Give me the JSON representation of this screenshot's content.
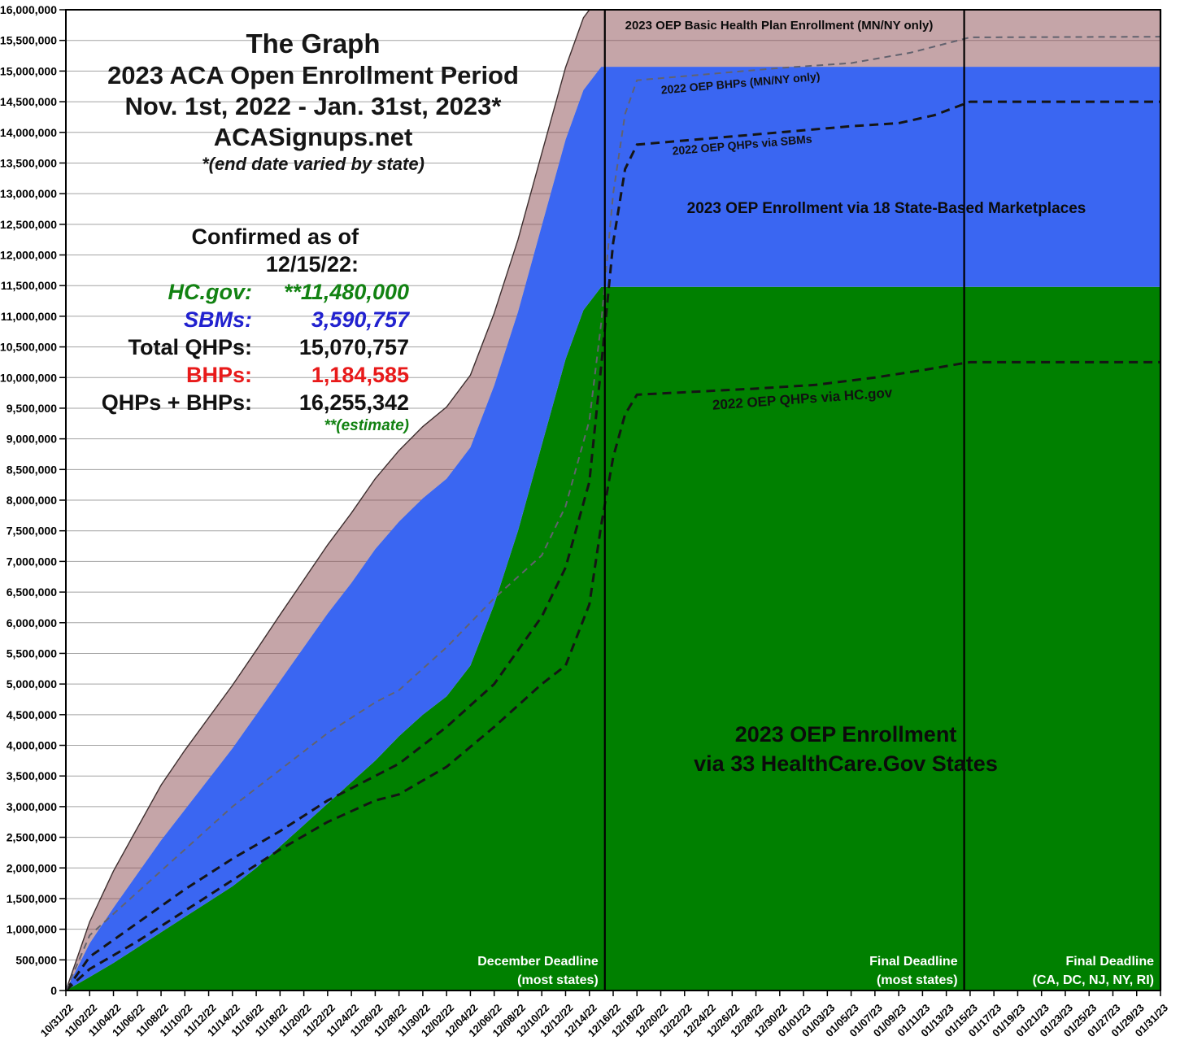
{
  "title_block": {
    "line1": "The Graph",
    "line2": "2023 ACA Open Enrollment Period",
    "line3": "Nov. 1st, 2022 - Jan. 31st, 2023*",
    "line4": "ACASignups.net",
    "line5": "*(end date varied by state)"
  },
  "stats": {
    "heading": "Confirmed as of 12/15/22:",
    "rows": [
      {
        "label": "HC.gov:",
        "value": "**11,480,000",
        "color": "#128212"
      },
      {
        "label": "SBMs:",
        "value": "3,590,757",
        "color": "#2121CF"
      },
      {
        "label": "Total QHPs:",
        "value": "15,070,757",
        "color": "#111111"
      },
      {
        "label": "BHPs:",
        "value": "1,184,585",
        "color": "#E81A1A"
      },
      {
        "label": "QHPs + BHPs:",
        "value": "16,255,342",
        "color": "#111111"
      }
    ],
    "note": "**(estimate)"
  },
  "colors": {
    "hcgov_green": "#008000",
    "sbm_blue": "#3A66F2",
    "bhp_pink": "rgba(139,75,81,0.5)",
    "stat_green": "#128212",
    "stat_blue": "#2121CF",
    "stat_red": "#E81A1A",
    "grid_gray": "#A3A3A3",
    "dashed_2022_black": "#151515",
    "dashed_2022_gray": "#62626E",
    "deadline_text": "#FFFFFF"
  },
  "chart_data": {
    "type": "area",
    "title": "The Graph — 2023 ACA Open Enrollment Period",
    "unit": "millions of enrollees",
    "legend_position": "labels-on-areas",
    "grid": true,
    "x_axis": {
      "days_span": 92,
      "start_date": "10/31/22",
      "end_date": "01/31/23",
      "tick_labels": [
        "10/31/22",
        "11/02/22",
        "11/04/22",
        "11/06/22",
        "11/08/22",
        "11/10/22",
        "11/12/22",
        "11/14/22",
        "11/16/22",
        "11/18/22",
        "11/20/22",
        "11/22/22",
        "11/24/22",
        "11/26/22",
        "11/28/22",
        "11/30/22",
        "12/02/22",
        "12/04/22",
        "12/06/22",
        "12/08/22",
        "12/10/22",
        "12/12/22",
        "12/14/22",
        "12/16/22",
        "12/18/22",
        "12/20/22",
        "12/22/22",
        "12/24/22",
        "12/26/22",
        "12/28/22",
        "12/30/22",
        "01/01/23",
        "01/03/23",
        "01/05/23",
        "01/07/23",
        "01/09/23",
        "01/11/23",
        "01/13/23",
        "01/15/23",
        "01/17/23",
        "01/19/23",
        "01/21/23",
        "01/23/23",
        "01/25/23",
        "01/27/23",
        "01/29/23",
        "01/31/23"
      ]
    },
    "y_axis": {
      "min": 0,
      "max_millions": 16,
      "tick_interval": 500000,
      "tick_labels": [
        "16,000,000",
        "15,500,000",
        "15,000,000",
        "14,500,000",
        "14,000,000",
        "13,500,000",
        "13,000,000",
        "12,500,000",
        "12,000,000",
        "11,500,000",
        "11,000,000",
        "10,500,000",
        "10,000,000",
        "9,500,000",
        "9,000,000",
        "8,500,000",
        "8,000,000",
        "7,500,000",
        "7,000,000",
        "6,500,000",
        "6,000,000",
        "5,500,000",
        "5,000,000",
        "4,500,000",
        "4,000,000",
        "3,500,000",
        "3,000,000",
        "2,500,000",
        "2,000,000",
        "1,500,000",
        "1,000,000",
        "500,000",
        "0"
      ]
    },
    "areas_2023": [
      {
        "id": "hcgov",
        "label_lines": [
          "2023 OEP Enrollment",
          "via 33 HealthCare.Gov States"
        ],
        "color": "#008000",
        "final_value_millions": 11.48,
        "days": [
          0,
          2,
          4,
          6,
          8,
          10,
          12,
          14,
          16,
          18,
          20,
          22,
          24,
          26,
          28,
          30,
          32,
          34,
          36,
          38,
          40,
          42,
          43.5,
          45,
          92
        ],
        "values": [
          0,
          0.22,
          0.45,
          0.7,
          0.95,
          1.2,
          1.45,
          1.7,
          2.0,
          2.35,
          2.7,
          3.05,
          3.4,
          3.75,
          4.15,
          4.5,
          4.8,
          5.3,
          6.3,
          7.5,
          8.9,
          10.3,
          11.1,
          11.48,
          11.48
        ]
      },
      {
        "id": "sbm",
        "label": "2023 OEP Enrollment via 18 State-Based Marketplaces",
        "color": "#3A66F2",
        "final_value_millions": 15.07,
        "days": [
          0,
          2,
          4,
          6,
          8,
          10,
          12,
          14,
          16,
          18,
          20,
          22,
          24,
          26,
          28,
          30,
          32,
          34,
          36,
          38,
          40,
          42,
          43.5,
          45,
          92
        ],
        "values": [
          0,
          0.77,
          1.35,
          1.9,
          2.45,
          2.95,
          3.45,
          3.95,
          4.5,
          5.05,
          5.6,
          6.15,
          6.65,
          7.2,
          7.65,
          8.03,
          8.35,
          8.86,
          9.87,
          11.07,
          12.48,
          13.88,
          14.69,
          15.07,
          15.07
        ]
      },
      {
        "id": "bhp",
        "label": "2023 OEP Basic Health Plan Enrollment (MN/NY only)",
        "color": "rgba(139,75,81,0.5)",
        "edge_color": "#3D2E2E",
        "final_value_millions": 16.255,
        "days": [
          0,
          2,
          4,
          6,
          8,
          10,
          12,
          14,
          16,
          18,
          20,
          22,
          24,
          26,
          28,
          30,
          32,
          34,
          36,
          38,
          40,
          42,
          43.5,
          45,
          92
        ],
        "values": [
          0,
          1.12,
          1.95,
          2.65,
          3.35,
          3.92,
          4.45,
          4.98,
          5.55,
          6.13,
          6.7,
          7.27,
          7.79,
          8.35,
          8.81,
          9.2,
          9.52,
          10.04,
          11.05,
          12.25,
          13.66,
          15.06,
          15.87,
          16.255,
          16.255
        ]
      }
    ],
    "lines_2022": [
      {
        "id": "hc22",
        "label": "2022 OEP QHPs via HC.gov",
        "stroke": "#151515",
        "width": 3,
        "dash": "11 7",
        "final_value_millions": 10.25,
        "days": [
          0,
          2,
          6,
          10,
          14,
          18,
          22,
          26,
          28,
          32,
          36,
          40,
          42,
          44,
          45,
          46,
          47,
          48,
          52,
          58,
          63,
          68,
          72,
          75,
          76,
          92
        ],
        "values": [
          0,
          0.35,
          0.8,
          1.3,
          1.8,
          2.3,
          2.75,
          3.1,
          3.2,
          3.65,
          4.3,
          5.0,
          5.3,
          6.3,
          7.6,
          8.7,
          9.4,
          9.72,
          9.76,
          9.82,
          9.88,
          10.0,
          10.12,
          10.22,
          10.25,
          10.25
        ]
      },
      {
        "id": "sbm22",
        "label": "2022 OEP QHPs via SBMs",
        "stroke": "#151515",
        "width": 3,
        "dash": "11 7",
        "final_value_millions": 14.5,
        "days": [
          0,
          2,
          6,
          10,
          14,
          18,
          22,
          26,
          28,
          32,
          36,
          40,
          42,
          44,
          45,
          46,
          47,
          48,
          54,
          60,
          66,
          70,
          73,
          76,
          92
        ],
        "values": [
          0,
          0.55,
          1.1,
          1.65,
          2.15,
          2.6,
          3.1,
          3.5,
          3.7,
          4.3,
          5.0,
          6.1,
          6.9,
          8.3,
          10.2,
          12.2,
          13.4,
          13.8,
          13.9,
          14.0,
          14.1,
          14.15,
          14.28,
          14.5,
          14.5
        ]
      },
      {
        "id": "bhp22",
        "label": "2022 OEP BHPs (MN/NY only)",
        "stroke": "#62626E",
        "width": 2,
        "dash": "8 6",
        "final_value_millions": 15.56,
        "days": [
          0,
          2,
          6,
          10,
          14,
          18,
          22,
          26,
          28,
          32,
          36,
          40,
          42,
          44,
          45,
          46,
          47,
          48,
          54,
          60,
          66,
          71,
          76,
          92
        ],
        "values": [
          0,
          0.9,
          1.6,
          2.3,
          3.0,
          3.6,
          4.2,
          4.7,
          4.9,
          5.6,
          6.4,
          7.1,
          7.9,
          9.3,
          10.9,
          13.0,
          14.3,
          14.85,
          14.95,
          15.05,
          15.13,
          15.3,
          15.55,
          15.56
        ]
      }
    ],
    "deadlines": [
      {
        "label": "December Deadline",
        "sub": "(most states)",
        "date": "12/15/22",
        "day": 45.3
      },
      {
        "label": "Final Deadline",
        "sub": "(most states)",
        "date": "01/15/23",
        "day": 75.5
      },
      {
        "label": "Final Deadline",
        "sub": "(CA, DC, NJ, NY, RI)",
        "date": "01/31/23",
        "day": 92
      }
    ]
  }
}
